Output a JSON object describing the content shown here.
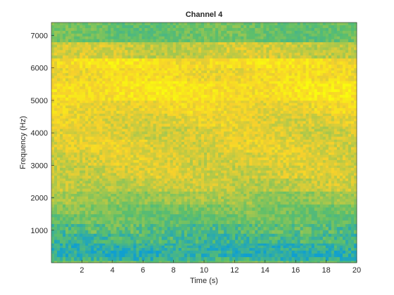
{
  "chart_data": {
    "type": "heatmap",
    "title": "Channel 4",
    "xlabel": "Time (s)",
    "ylabel": "Frequency (Hz)",
    "xlim": [
      0,
      20
    ],
    "ylim": [
      0,
      7400
    ],
    "xticks": [
      2,
      4,
      6,
      8,
      10,
      12,
      14,
      16,
      18,
      20
    ],
    "yticks": [
      1000,
      2000,
      3000,
      4000,
      5000,
      6000,
      7000
    ],
    "colormap": "parula",
    "colors": {
      "low": "#0f9fd0",
      "mid": "#5fbf6a",
      "high": "#f7d02c",
      "peak": "#f9fb0e",
      "background": "#ffffff",
      "axis": "#262626"
    },
    "grid": false,
    "bands": [
      {
        "from": 0,
        "to": 60,
        "level": 0.45
      },
      {
        "from": 60,
        "to": 180,
        "level": 0.22
      },
      {
        "from": 180,
        "to": 380,
        "level": 0.14
      },
      {
        "from": 380,
        "to": 600,
        "level": 0.18
      },
      {
        "from": 600,
        "to": 900,
        "level": 0.28
      },
      {
        "from": 900,
        "to": 1200,
        "level": 0.34
      },
      {
        "from": 1200,
        "to": 1500,
        "level": 0.42
      },
      {
        "from": 1500,
        "to": 1800,
        "level": 0.47
      },
      {
        "from": 1800,
        "to": 2200,
        "level": 0.56
      },
      {
        "from": 2200,
        "to": 2600,
        "level": 0.66
      },
      {
        "from": 2600,
        "to": 3000,
        "level": 0.7
      },
      {
        "from": 3000,
        "to": 3400,
        "level": 0.72
      },
      {
        "from": 3400,
        "to": 3800,
        "level": 0.74
      },
      {
        "from": 3800,
        "to": 4200,
        "level": 0.72
      },
      {
        "from": 4200,
        "to": 4600,
        "level": 0.75
      },
      {
        "from": 4600,
        "to": 5000,
        "level": 0.8
      },
      {
        "from": 5000,
        "to": 5600,
        "level": 0.88
      },
      {
        "from": 5600,
        "to": 6000,
        "level": 0.82
      },
      {
        "from": 6000,
        "to": 6300,
        "level": 0.86
      },
      {
        "from": 6300,
        "to": 6800,
        "level": 0.68
      },
      {
        "from": 6800,
        "to": 7400,
        "level": 0.42
      }
    ]
  }
}
